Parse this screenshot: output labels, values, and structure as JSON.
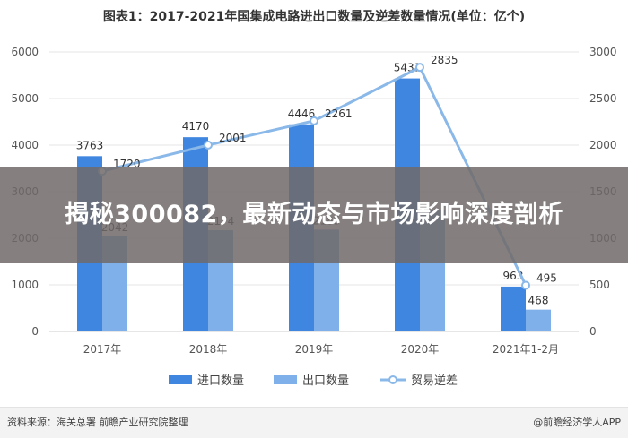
{
  "chart_data": {
    "type": "bar",
    "title": "图表1：2017-2021年国集成电路进出口数量及逆差数量情况(单位：亿个)",
    "categories": [
      "2017年",
      "2018年",
      "2019年",
      "2020年",
      "2021年1-2月"
    ],
    "series": [
      {
        "name": "进口数量",
        "type": "bar",
        "axis": "left",
        "color": "#3f86e0",
        "values": [
          3763,
          4170,
          4446,
          5431,
          963
        ]
      },
      {
        "name": "出口数量",
        "type": "bar",
        "axis": "left",
        "color": "#7fb0ea",
        "values": [
          2042,
          2174,
          2185,
          2598,
          468
        ]
      },
      {
        "name": "贸易逆差",
        "type": "line",
        "axis": "right",
        "color": "#8ab8e8",
        "values": [
          1720,
          2001,
          2261,
          2835,
          495
        ]
      }
    ],
    "bar_label_text": [
      "3763",
      "4170",
      "4446",
      "5431",
      "963"
    ],
    "export_label_text": [
      "2042",
      "2174",
      "2185",
      "",
      "468"
    ],
    "line_label_text": [
      "1720",
      "2001",
      "2261",
      "2835",
      "495"
    ],
    "left_axis": {
      "ylim": [
        0,
        6000
      ],
      "ticks": [
        0,
        1000,
        2000,
        3000,
        4000,
        5000,
        6000
      ]
    },
    "right_axis": {
      "ylim": [
        0,
        3000
      ],
      "ticks": [
        0,
        500,
        1000,
        1500,
        2000,
        2500,
        3000
      ]
    },
    "grid": true,
    "legend_position": "bottom"
  },
  "footer": {
    "source": "资料来源：海关总署 前瞻产业研究院整理",
    "brand": "@前瞻经济学人APP"
  },
  "banner": {
    "headline": "揭秘300082，最新动态与市场影响深度剖析"
  }
}
